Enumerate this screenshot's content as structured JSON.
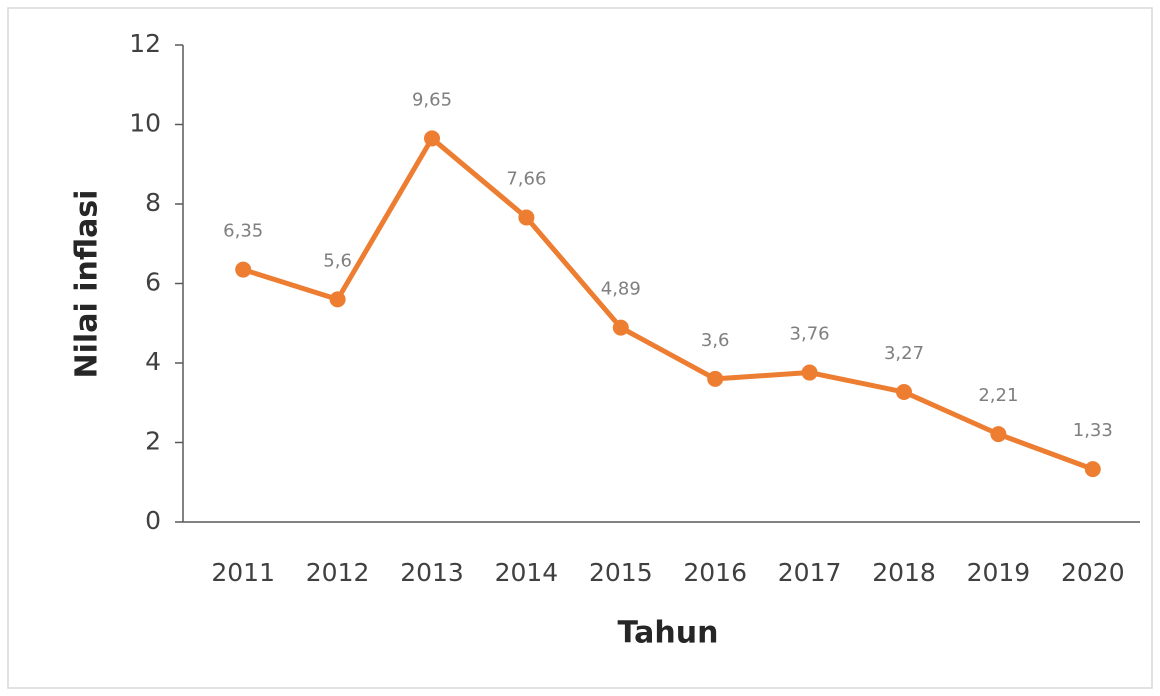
{
  "chart_data": {
    "type": "line",
    "x_label": "Tahun",
    "y_label": "Nilai inflasi",
    "categories": [
      "2011",
      "2012",
      "2013",
      "2014",
      "2015",
      "2016",
      "2017",
      "2018",
      "2019",
      "2020"
    ],
    "series": [
      {
        "name": "Nilai inflasi",
        "color": "#ED7D31",
        "values": [
          6.35,
          5.6,
          9.65,
          7.66,
          4.89,
          3.6,
          3.76,
          3.27,
          2.21,
          1.33
        ],
        "value_labels": [
          "6,35",
          "5,6",
          "9,65",
          "7,66",
          "4,89",
          "3,6",
          "3,76",
          "3,27",
          "2,21",
          "1,33"
        ]
      }
    ],
    "ylim": [
      0,
      12
    ],
    "yticks": [
      0,
      2,
      4,
      6,
      8,
      10,
      12
    ],
    "grid": false
  }
}
